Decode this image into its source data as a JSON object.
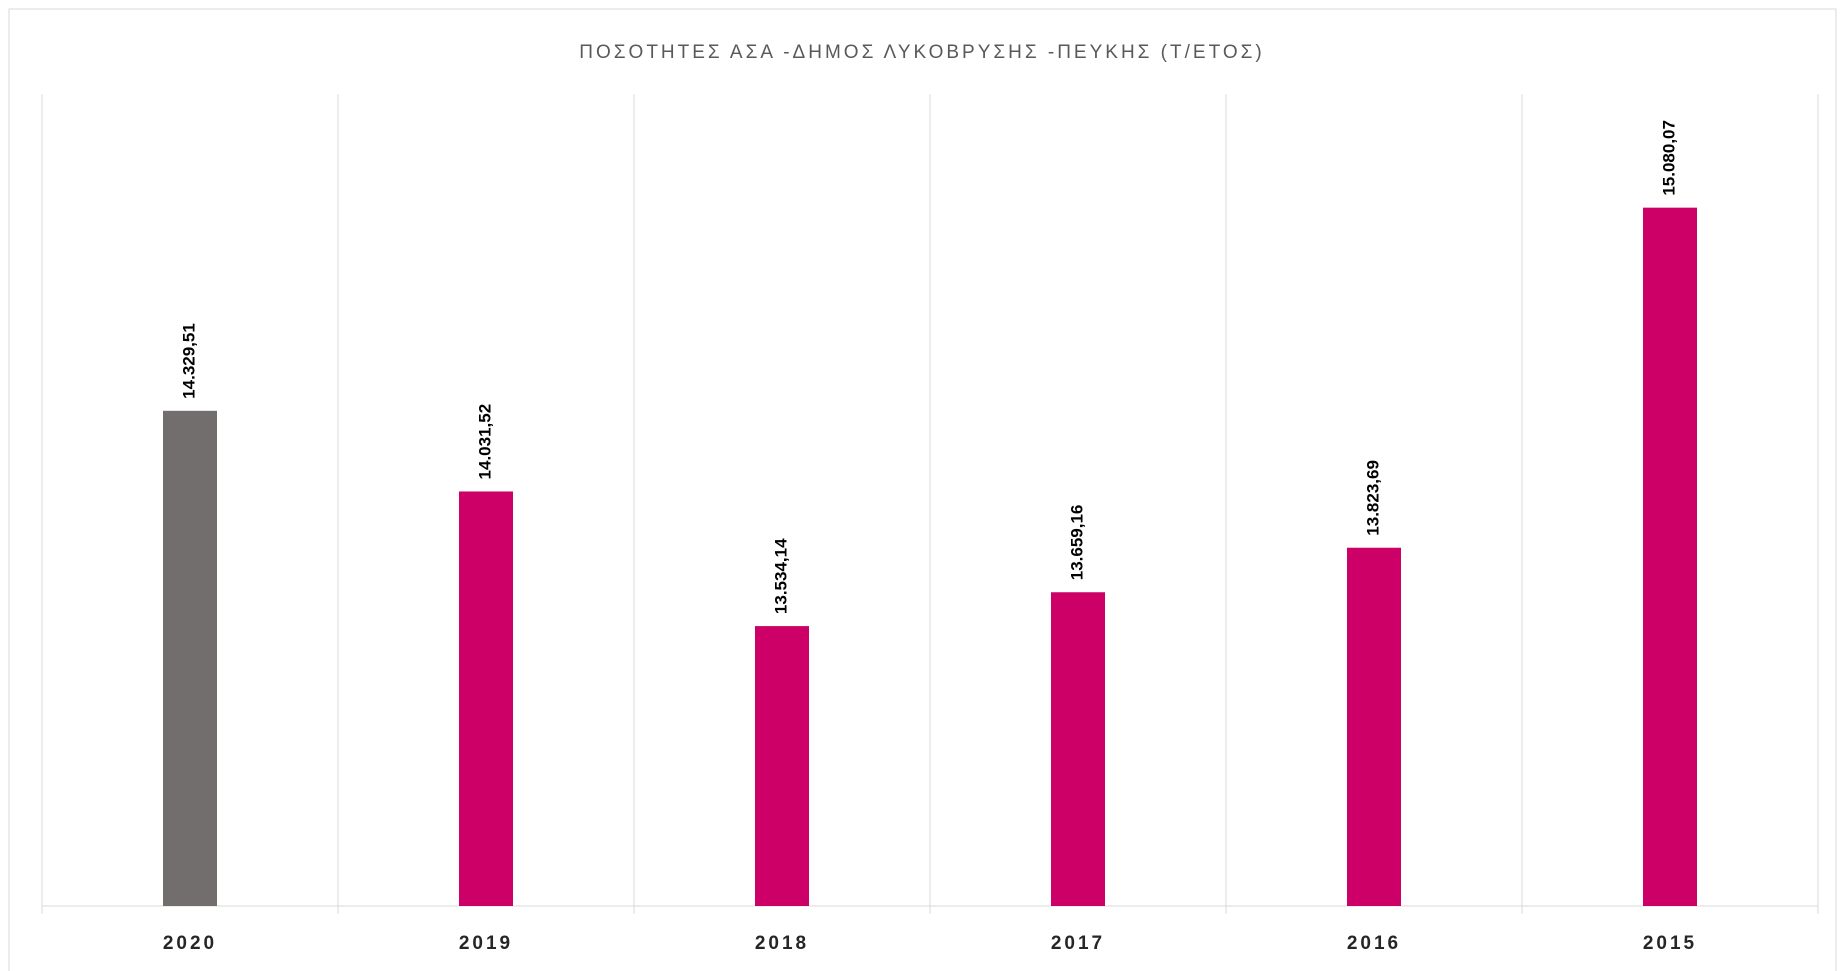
{
  "chart_data": {
    "type": "bar",
    "title": "ΠΟΣΟΤΗΤΕΣ  ΑΣΑ -ΔΗΜΟΣ ΛΥΚΟΒΡΥΣΗΣ -ΠΕΥΚΗΣ (Τ/ΕΤΟΣ)",
    "categories": [
      "2020",
      "2019",
      "2018",
      "2017",
      "2016",
      "2015"
    ],
    "values": [
      14329.51,
      14031.52,
      13534.14,
      13659.16,
      13823.69,
      15080.07
    ],
    "value_labels": [
      "14.329,51",
      "14.031,52",
      "13.534,14",
      "13.659,16",
      "13.823,69",
      "15.080,07"
    ],
    "colors": [
      "#726e6d",
      "#cc0066",
      "#cc0066",
      "#cc0066",
      "#cc0066",
      "#cc0066"
    ],
    "ylim": [
      12500,
      15500
    ]
  }
}
